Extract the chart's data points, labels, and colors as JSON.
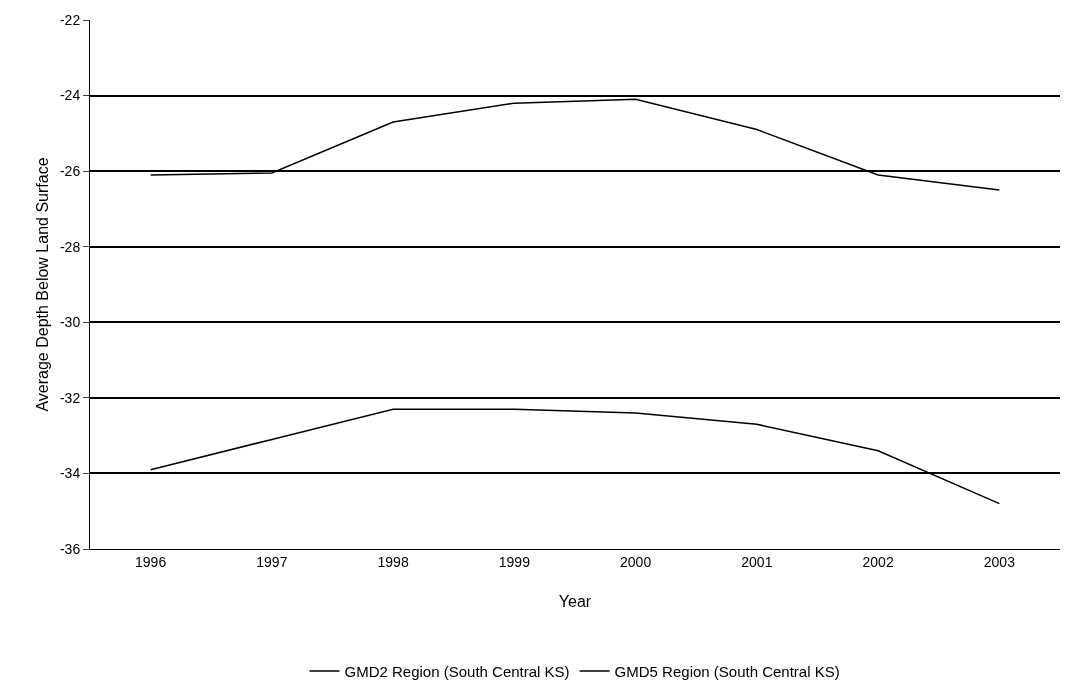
{
  "chart_data": {
    "type": "line",
    "xlabel": "Year",
    "ylabel": "Average Depth Below Land Surface",
    "categories": [
      "1996",
      "1997",
      "1998",
      "1999",
      "2000",
      "2001",
      "2002",
      "2003"
    ],
    "series": [
      {
        "name": "GMD2 Region (South Central KS)",
        "color": "#000000",
        "values": [
          -26.1,
          -26.05,
          -24.7,
          -24.2,
          -24.1,
          -24.9,
          -26.1,
          -26.5
        ]
      },
      {
        "name": "GMD5 Region (South Central KS)",
        "color": "#000000",
        "values": [
          -33.9,
          -33.1,
          -32.3,
          -32.3,
          -32.4,
          -32.7,
          -33.4,
          -34.8
        ]
      }
    ],
    "ylim": [
      -36,
      -22
    ],
    "yticks": [
      -36,
      -34,
      -32,
      -30,
      -28,
      -26,
      -24,
      -22
    ],
    "grid": "y",
    "legend": "bottom",
    "marker": "none",
    "line_style": "solid"
  }
}
